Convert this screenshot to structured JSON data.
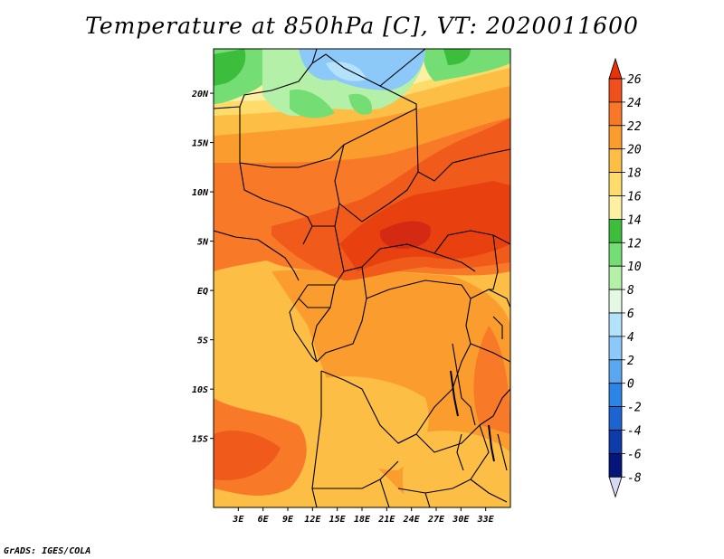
{
  "title": "Temperature at 850hPa [C], VT: 2020011600",
  "credit": "GrADS: IGES/COLA",
  "map": {
    "lon_range": [
      0,
      36
    ],
    "lat_range": [
      -22,
      24.5
    ],
    "lon_ticks": [
      "3E",
      "6E",
      "9E",
      "12E",
      "15E",
      "18E",
      "21E",
      "24E",
      "27E",
      "30E",
      "33E"
    ],
    "lat_ticks": [
      "20N",
      "15N",
      "10N",
      "5N",
      "EQ",
      "5S",
      "10S",
      "15S"
    ]
  },
  "colorbar": {
    "levels": [
      "26",
      "24",
      "22",
      "20",
      "18",
      "16",
      "14",
      "12",
      "10",
      "8",
      "6",
      "4",
      "2",
      "0",
      "-2",
      "-4",
      "-6",
      "-8"
    ],
    "colors": [
      "#e8320a",
      "#f0501e",
      "#f87828",
      "#fa9d2e",
      "#fcbe44",
      "#fddc6c",
      "#fdf0a2",
      "#3cbe3c",
      "#74de74",
      "#b4f0a8",
      "#e4f8e4",
      "#b4e2fc",
      "#8cc8f8",
      "#5aa6f0",
      "#2c84e6",
      "#1c64d2",
      "#0e3aaa",
      "#05157a"
    ],
    "top_color": "#e8320a",
    "bottom_color": "#d6d8f4"
  },
  "palette": {
    "deep_red": "#d42a14",
    "red": "#e8400e",
    "orange_red": "#f05a1a",
    "orange": "#f87a28",
    "light_orange": "#fa9d2e",
    "amber": "#fcbe44",
    "yellow": "#fddc6c",
    "pale_yellow": "#fdf0a2",
    "green": "#3cbe3c",
    "light_green": "#74de74",
    "pale_green": "#b4f0a8",
    "blue": "#8cc8f8"
  }
}
